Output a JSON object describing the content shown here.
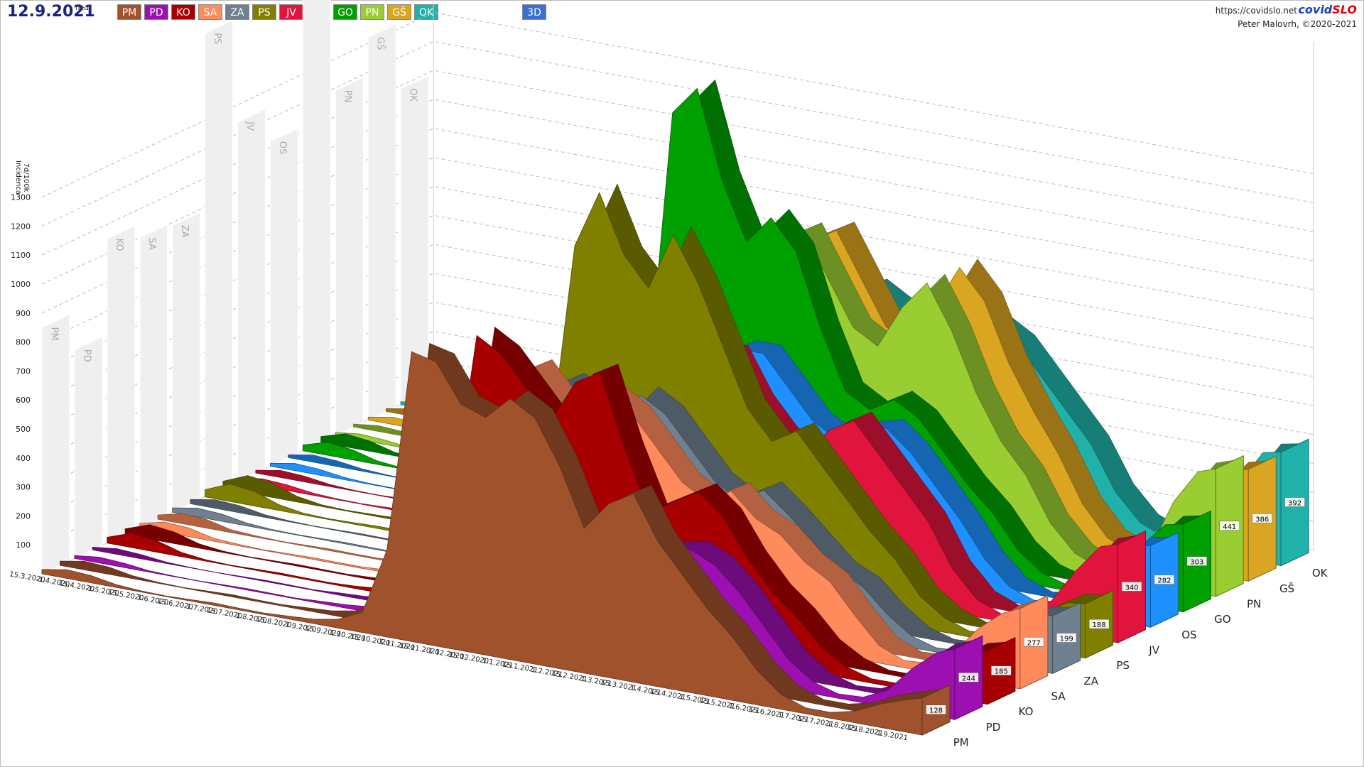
{
  "header": {
    "date": "12.9.2021",
    "weekday": "ned",
    "mode_button": "3D",
    "url": "https://covidslo.net",
    "brand_a": "covid",
    "brand_b": "SLO",
    "author": "Peter Malovrh, ©2020-2021"
  },
  "chart_data": {
    "type": "area3d",
    "ylabel": [
      "7d/100k",
      "Incidenca"
    ],
    "ylim": [
      0,
      1300
    ],
    "yticks": [
      100,
      200,
      300,
      400,
      500,
      600,
      700,
      800,
      900,
      1000,
      1100,
      1200,
      1300
    ],
    "categories": [
      "15.3.2020",
      "1.4.2020",
      "15.4.2020",
      "1.5.2020",
      "15.5.2020",
      "1.6.2020",
      "15.6.2020",
      "1.7.2020",
      "15.7.2020",
      "1.8.2020",
      "15.8.2020",
      "1.9.2020",
      "15.9.2020",
      "1.10.2020",
      "15.10.2020",
      "1.11.2020",
      "15.11.2020",
      "1.12.2020",
      "15.12.2020",
      "1.1.2021",
      "15.1.2021",
      "1.2.2021",
      "15.2.2021",
      "1.3.2021",
      "15.3.2021",
      "1.4.2021",
      "15.4.2021",
      "1.5.2021",
      "15.5.2021",
      "1.6.2021",
      "15.6.2021",
      "1.7.2021",
      "15.7.2021",
      "1.8.2021",
      "15.8.2021",
      "1.9.2021"
    ],
    "series": [
      {
        "name": "PM",
        "color": "#a0522d",
        "current": 128,
        "peak": 850,
        "values": [
          15,
          30,
          25,
          10,
          4,
          2,
          5,
          8,
          6,
          5,
          10,
          15,
          30,
          70,
          300,
          1000,
          980,
          850,
          820,
          900,
          850,
          700,
          500,
          600,
          650,
          500,
          400,
          300,
          220,
          120,
          50,
          20,
          20,
          40,
          80,
          110
        ]
      },
      {
        "name": "PD",
        "color": "#9c0fb0",
        "current": 244,
        "peak": 720,
        "values": [
          10,
          20,
          15,
          5,
          2,
          1,
          3,
          5,
          4,
          3,
          8,
          12,
          20,
          50,
          180,
          500,
          600,
          550,
          450,
          500,
          450,
          350,
          250,
          300,
          400,
          420,
          380,
          300,
          200,
          100,
          40,
          15,
          20,
          60,
          150,
          220
        ]
      },
      {
        "name": "KO",
        "color": "#a80000",
        "current": 185,
        "peak": 1050,
        "values": [
          20,
          50,
          40,
          15,
          5,
          2,
          4,
          6,
          5,
          4,
          8,
          15,
          40,
          90,
          350,
          950,
          900,
          800,
          700,
          850,
          900,
          650,
          450,
          500,
          550,
          480,
          350,
          250,
          180,
          90,
          40,
          15,
          15,
          40,
          110,
          170
        ]
      },
      {
        "name": "SA",
        "color": "#ff8a5c",
        "current": 277,
        "peak": 1000,
        "values": [
          15,
          35,
          30,
          10,
          5,
          2,
          4,
          6,
          5,
          5,
          10,
          15,
          25,
          60,
          250,
          750,
          800,
          700,
          650,
          750,
          700,
          600,
          500,
          450,
          500,
          420,
          380,
          300,
          250,
          150,
          60,
          25,
          30,
          80,
          180,
          250
        ]
      },
      {
        "name": "ZA",
        "color": "#6f8090",
        "current": 199,
        "peak": 990,
        "values": [
          15,
          30,
          25,
          10,
          4,
          2,
          3,
          5,
          4,
          4,
          8,
          12,
          25,
          60,
          220,
          650,
          700,
          650,
          600,
          700,
          650,
          550,
          450,
          400,
          450,
          380,
          300,
          220,
          180,
          100,
          40,
          15,
          20,
          50,
          130,
          190
        ]
      },
      {
        "name": "PS",
        "color": "#808000",
        "current": 188,
        "peak": 1600,
        "values": [
          25,
          60,
          50,
          20,
          6,
          3,
          5,
          8,
          8,
          6,
          12,
          20,
          50,
          120,
          400,
          1100,
          1300,
          1100,
          1000,
          1200,
          1050,
          850,
          650,
          550,
          600,
          500,
          400,
          300,
          220,
          110,
          50,
          20,
          25,
          60,
          130,
          180
        ]
      },
      {
        "name": "JV",
        "color": "#e0143c",
        "current": 340,
        "peak": 1240,
        "values": [
          10,
          25,
          20,
          8,
          3,
          2,
          5,
          8,
          10,
          8,
          12,
          18,
          30,
          70,
          300,
          850,
          900,
          800,
          700,
          750,
          750,
          600,
          500,
          450,
          550,
          600,
          500,
          400,
          300,
          150,
          60,
          25,
          40,
          100,
          220,
          320
        ]
      },
      {
        "name": "OS",
        "color": "#1e90ff",
        "current": 282,
        "peak": 1120,
        "values": [
          10,
          25,
          20,
          8,
          3,
          2,
          4,
          6,
          6,
          5,
          10,
          15,
          30,
          80,
          320,
          800,
          850,
          750,
          650,
          700,
          700,
          600,
          500,
          450,
          500,
          520,
          450,
          350,
          250,
          130,
          50,
          20,
          30,
          80,
          180,
          270
        ]
      },
      {
        "name": "GO",
        "color": "#00a000",
        "current": 303,
        "peak": 1630,
        "values": [
          20,
          45,
          35,
          12,
          4,
          2,
          4,
          6,
          5,
          5,
          10,
          18,
          40,
          100,
          450,
          1400,
          1500,
          1200,
          1000,
          1100,
          1000,
          750,
          550,
          500,
          550,
          500,
          400,
          300,
          220,
          110,
          45,
          20,
          30,
          80,
          200,
          290
        ]
      },
      {
        "name": "PN",
        "color": "#9acd32",
        "current": 441,
        "peak": 1190,
        "values": [
          10,
          20,
          15,
          5,
          2,
          1,
          3,
          5,
          5,
          4,
          8,
          15,
          30,
          70,
          250,
          700,
          800,
          900,
          950,
          1000,
          850,
          700,
          650,
          800,
          900,
          750,
          550,
          400,
          300,
          150,
          60,
          25,
          40,
          110,
          300,
          420
        ]
      },
      {
        "name": "GŠ",
        "color": "#daa520",
        "current": 386,
        "peak": 1320,
        "values": [
          10,
          25,
          20,
          8,
          3,
          2,
          4,
          6,
          5,
          5,
          10,
          15,
          30,
          70,
          300,
          750,
          800,
          850,
          900,
          950,
          800,
          650,
          600,
          750,
          900,
          800,
          600,
          450,
          320,
          160,
          60,
          25,
          40,
          100,
          270,
          370
        ]
      },
      {
        "name": "OK",
        "color": "#20b2aa",
        "current": 392,
        "peak": 1090,
        "values": [
          10,
          20,
          15,
          5,
          2,
          1,
          3,
          5,
          5,
          4,
          8,
          12,
          25,
          60,
          220,
          600,
          650,
          700,
          650,
          700,
          650,
          550,
          500,
          550,
          650,
          600,
          500,
          400,
          300,
          150,
          60,
          25,
          40,
          100,
          260,
          380
        ]
      }
    ]
  }
}
